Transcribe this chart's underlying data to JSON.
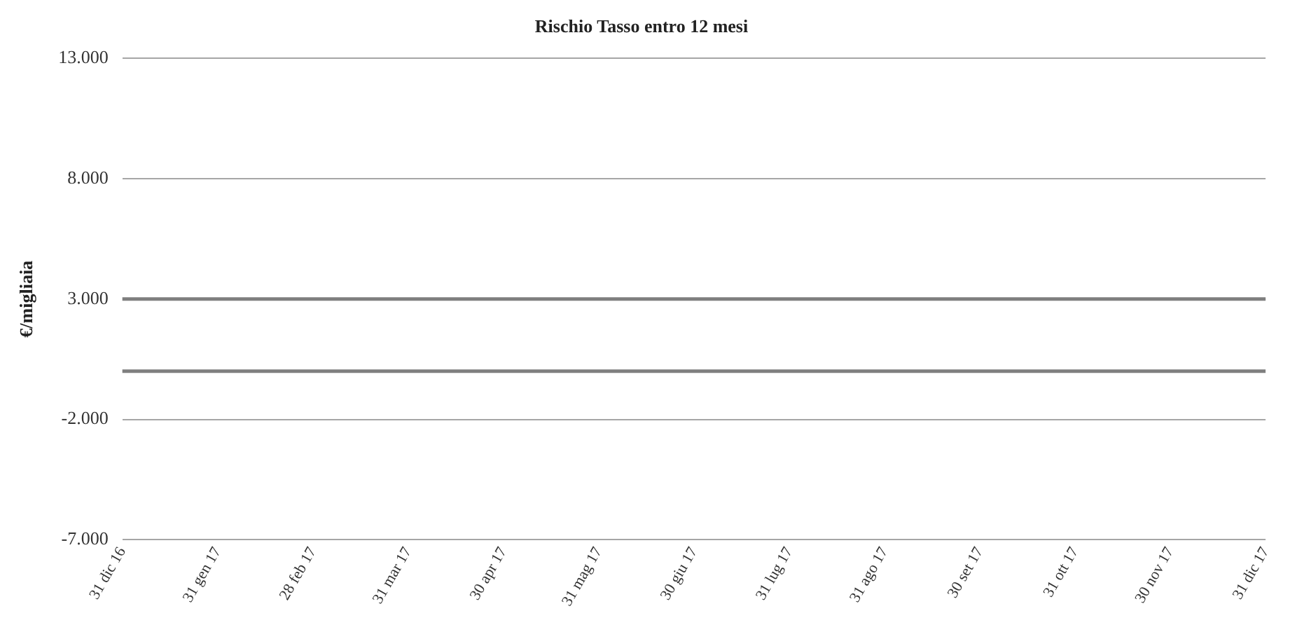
{
  "chart_data": {
    "type": "line",
    "title": "Rischio Tasso entro 12 mesi",
    "ylabel": "€/migliaia",
    "categories": [
      "31 dic 16",
      "31 gen 17",
      "28 feb 17",
      "31 mar 17",
      "30 apr 17",
      "31 mag 17",
      "30 giu 17",
      "31 lug 17",
      "31 ago 17",
      "30 set 17",
      "31 ott 17",
      "30 nov 17",
      "31 dic 17"
    ],
    "series": [
      {
        "color": "#7f7f7f",
        "values": [
          3000,
          3000,
          3000,
          3000,
          3000,
          3000,
          3000,
          3000,
          3000,
          3000,
          3000,
          3000,
          3000
        ]
      },
      {
        "color": "#7f7f7f",
        "values": [
          0,
          0,
          0,
          0,
          0,
          0,
          0,
          0,
          0,
          0,
          0,
          0,
          0
        ]
      }
    ],
    "ylim": [
      -7000,
      13000
    ],
    "yticks": [
      {
        "value": -7000,
        "label": "-7.000"
      },
      {
        "value": -2000,
        "label": "-2.000"
      },
      {
        "value": 3000,
        "label": "3.000"
      },
      {
        "value": 8000,
        "label": "8.000"
      },
      {
        "value": 13000,
        "label": "13.000"
      }
    ],
    "grid": "y",
    "legend": false,
    "marker": "none",
    "line_style": "solid"
  }
}
